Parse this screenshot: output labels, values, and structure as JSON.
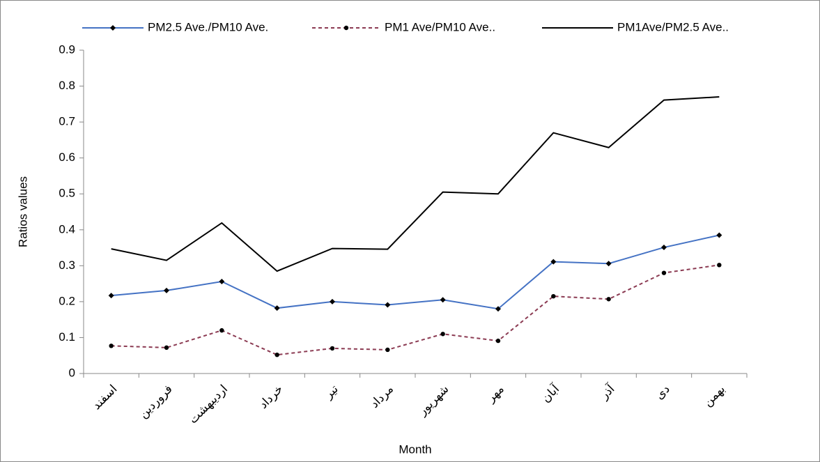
{
  "chart_data": {
    "type": "line",
    "x_label": "Month",
    "y_label": "Ratios  values",
    "categories": [
      "اسفند",
      "فروردین",
      "اردیبهشت",
      "خرداد",
      "تیر",
      "مرداد",
      "شهریور",
      "مهر",
      "آبان",
      "آذر",
      "دی",
      "بهمن"
    ],
    "series": [
      {
        "name": "PM2.5 Ave./PM10 Ave.",
        "color": "#4472c4",
        "line_style": "solid",
        "marker": "diamond",
        "values": [
          0.217,
          0.231,
          0.256,
          0.182,
          0.2,
          0.191,
          0.205,
          0.18,
          0.311,
          0.306,
          0.351,
          0.385
        ]
      },
      {
        "name": "PM1 Ave/PM10 Ave..",
        "color": "#8b3a52",
        "line_style": "dashed",
        "marker": "circle",
        "values": [
          0.077,
          0.072,
          0.12,
          0.052,
          0.07,
          0.066,
          0.11,
          0.091,
          0.215,
          0.207,
          0.28,
          0.302
        ]
      },
      {
        "name": "PM1Ave/PM2.5 Ave..",
        "color": "#000000",
        "line_style": "solid",
        "marker": "none",
        "values": [
          0.347,
          0.315,
          0.419,
          0.285,
          0.348,
          0.346,
          0.505,
          0.5,
          0.67,
          0.629,
          0.761,
          0.77
        ]
      }
    ],
    "ylim": [
      0,
      0.9
    ],
    "yticks": [
      0,
      0.1,
      0.2,
      0.3,
      0.4,
      0.5,
      0.6,
      0.7,
      0.8,
      0.9
    ],
    "grid": false,
    "legend": "top"
  }
}
